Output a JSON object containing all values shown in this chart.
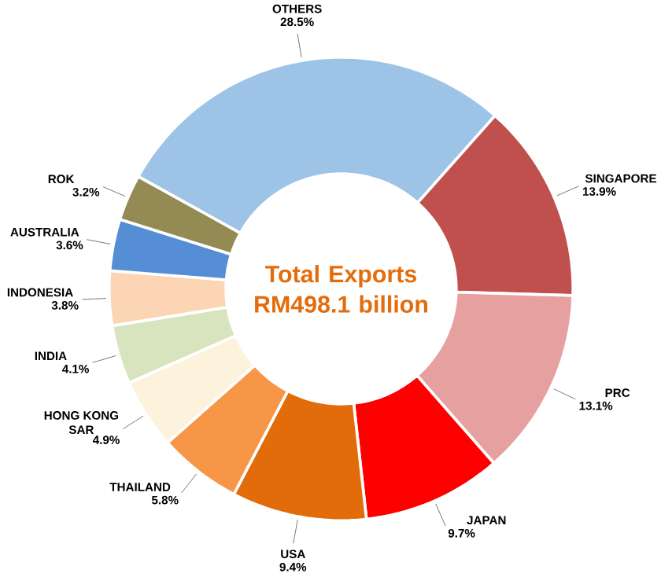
{
  "chart_data": {
    "type": "donut",
    "title": "Total Exports RM498.1 billion",
    "categories": [
      "OTHERS",
      "SINGAPORE",
      "PRC",
      "JAPAN",
      "USA",
      "THAILAND",
      "HONG KONG SAR",
      "INDIA",
      "INDONESIA",
      "AUSTRALIA",
      "ROK"
    ],
    "values": [
      28.5,
      13.9,
      13.1,
      9.7,
      9.4,
      5.8,
      4.9,
      4.1,
      3.8,
      3.6,
      3.2
    ],
    "value_labels": [
      "28.5%",
      "13.9%",
      "13.1%",
      "9.7%",
      "9.4%",
      "5.8%",
      "4.9%",
      "4.1%",
      "3.8%",
      "3.6%",
      "3.2%"
    ],
    "colors": [
      "#9dc3e6",
      "#c0504d",
      "#e6a0a0",
      "#ff0000",
      "#e36c0a",
      "#f79646",
      "#fdf3dc",
      "#d7e4bd",
      "#fcd5b4",
      "#558ed5",
      "#948a54"
    ]
  }
}
